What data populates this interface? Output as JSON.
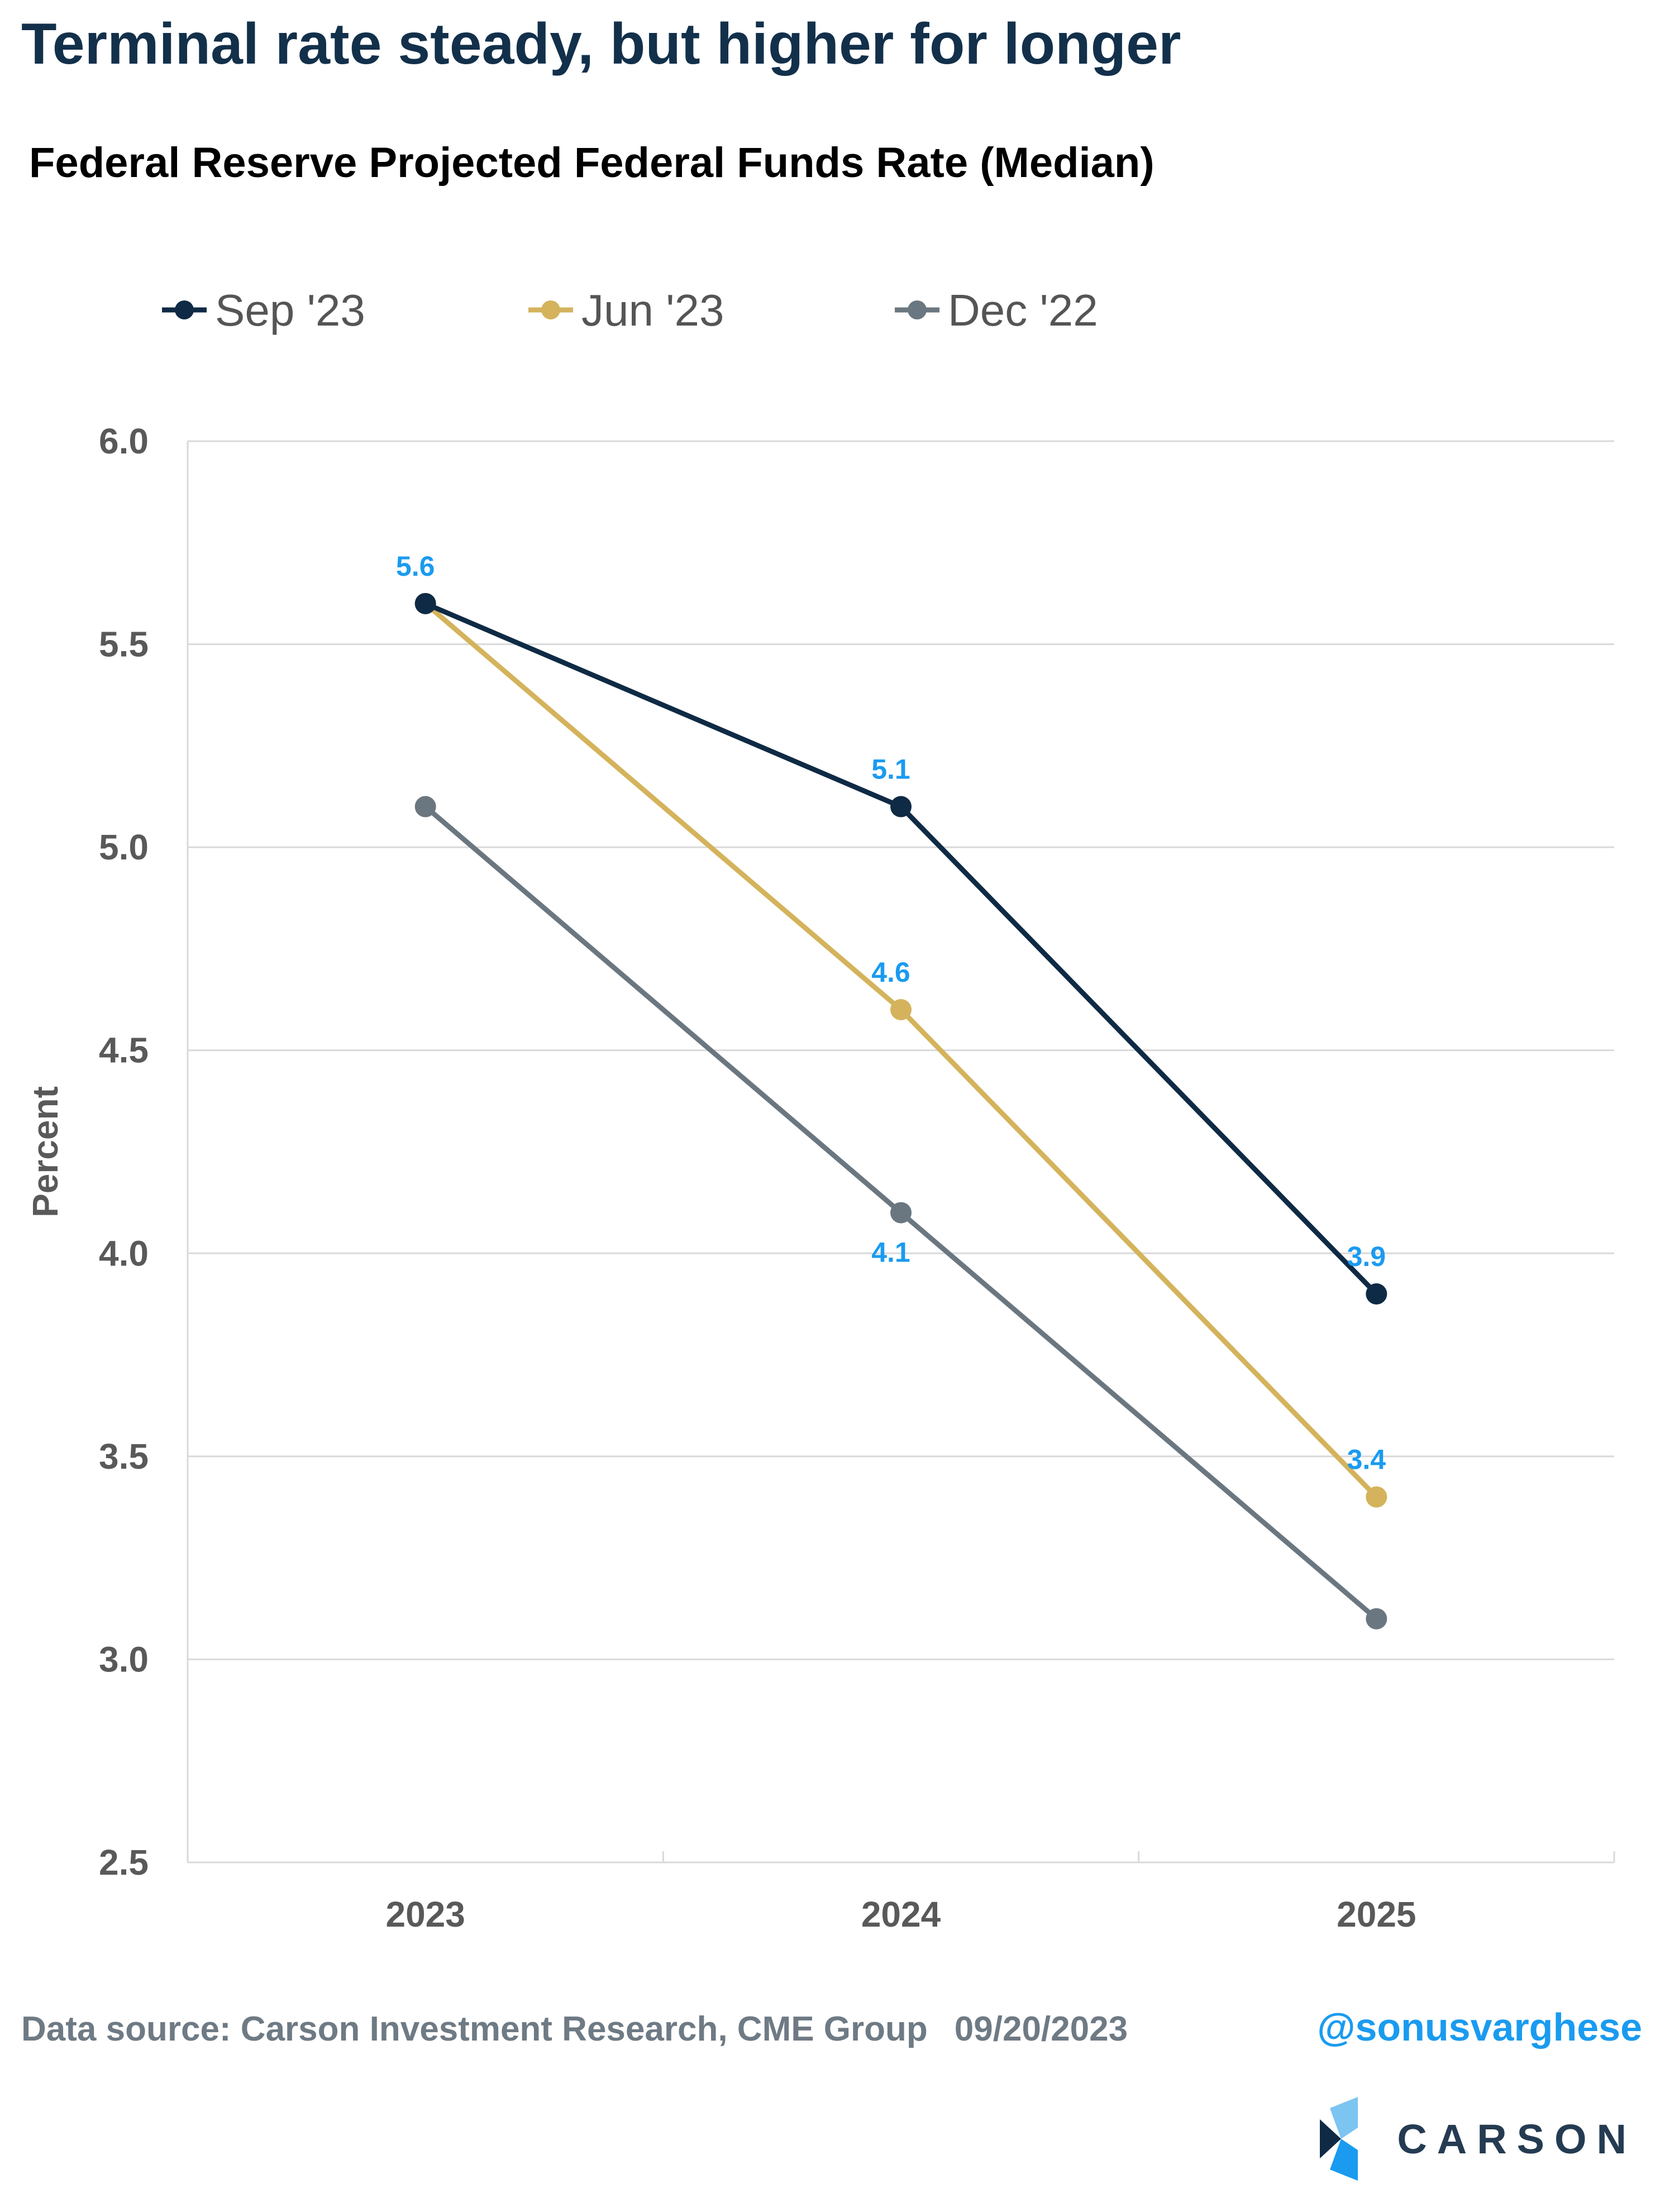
{
  "headline": "Terminal rate steady, but higher for longer",
  "footer": {
    "source": "Data source: Carson Investment Research, CME Group",
    "date": "09/20/2023",
    "handle": "@sonusvarghese",
    "brand": "CARSON"
  },
  "colors": {
    "sep23": "#0f2a44",
    "jun23": "#d4b35c",
    "dec22": "#6b7780",
    "data_label": "#1a9bf0",
    "gridline": "#d9d9d9",
    "tick_text": "#595959",
    "headline": "#13304b"
  },
  "chart_data": {
    "type": "line",
    "title": "Federal Reserve Projected Federal Funds Rate (Median)",
    "xlabel": "",
    "ylabel": "Percent",
    "categories": [
      "2023",
      "2024",
      "2025"
    ],
    "ylim": [
      2.5,
      6.0
    ],
    "yticks": [
      "2.5",
      "3.0",
      "3.5",
      "4.0",
      "4.5",
      "5.0",
      "5.5",
      "6.0"
    ],
    "grid": true,
    "legend_position": "top",
    "series": [
      {
        "name": "Sep '23",
        "values": [
          5.6,
          5.1,
          3.9
        ],
        "labels": [
          "",
          "5.1",
          "3.9"
        ]
      },
      {
        "name": "Jun '23",
        "values": [
          5.6,
          4.6,
          3.4
        ],
        "labels": [
          "5.6",
          "4.6",
          "3.4"
        ]
      },
      {
        "name": "Dec '22",
        "values": [
          5.1,
          4.1,
          3.1
        ],
        "labels": [
          "",
          "4.1",
          ""
        ]
      }
    ]
  }
}
